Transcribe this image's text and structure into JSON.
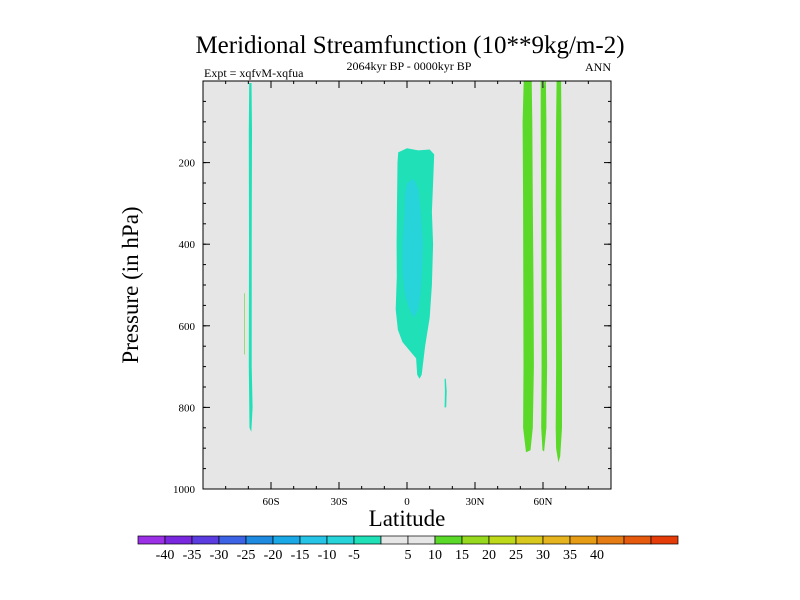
{
  "chart_data": {
    "type": "contour",
    "title": "Meridional Streamfunction (10**9kg/m-2)",
    "experiment": "Expt = xqfvM-xqfua",
    "period": "2064kyr BP - 0000kyr BP",
    "season": "ANN",
    "xlabel": "Latitude",
    "ylabel": "Pressure (in hPa)",
    "xlim": [
      -90,
      90
    ],
    "ylim": [
      1000,
      0
    ],
    "x_ticks": [
      {
        "value": -60,
        "label": "60S"
      },
      {
        "value": -30,
        "label": "30S"
      },
      {
        "value": 0,
        "label": "0"
      },
      {
        "value": 30,
        "label": "30N"
      },
      {
        "value": 60,
        "label": "60N"
      }
    ],
    "x_minor_step": 10,
    "y_ticks": [
      {
        "value": 200,
        "label": "200"
      },
      {
        "value": 400,
        "label": "400"
      },
      {
        "value": 600,
        "label": "600"
      },
      {
        "value": 800,
        "label": "800"
      },
      {
        "value": 1000,
        "label": "1000"
      }
    ],
    "y_minor_step": 50,
    "background_color": "#e6e6e6",
    "contour_regions": [
      {
        "name": "sh-thin-column",
        "level": "-10 to -5",
        "color": "#20e0b8",
        "points": [
          [
            -69.6,
            5
          ],
          [
            -68.6,
            5
          ],
          [
            -68.4,
            120
          ],
          [
            -68.5,
            400
          ],
          [
            -68.5,
            700
          ],
          [
            -68.1,
            800
          ],
          [
            -68.7,
            860
          ],
          [
            -69.5,
            850
          ],
          [
            -69.8,
            700
          ],
          [
            -69.7,
            400
          ],
          [
            -69.8,
            120
          ]
        ]
      },
      {
        "name": "sh-tiny-positive",
        "level": "5 to 10",
        "color": "#5ad928",
        "points": [
          [
            -71.8,
            520
          ],
          [
            -71.5,
            520
          ],
          [
            -71.5,
            670
          ],
          [
            -71.8,
            670
          ]
        ]
      },
      {
        "name": "tropical-cell",
        "level": "-10 to -5",
        "color": "#20e0b8",
        "points": [
          [
            -3.9,
            175
          ],
          [
            0,
            165
          ],
          [
            5,
            170
          ],
          [
            10,
            168
          ],
          [
            12,
            180
          ],
          [
            11.5,
            250
          ],
          [
            11,
            320
          ],
          [
            11.5,
            400
          ],
          [
            11,
            500
          ],
          [
            10,
            580
          ],
          [
            8,
            650
          ],
          [
            6.5,
            720
          ],
          [
            5.5,
            730
          ],
          [
            4.5,
            720
          ],
          [
            4,
            680
          ],
          [
            -2,
            640
          ],
          [
            -4,
            610
          ],
          [
            -5,
            560
          ],
          [
            -4.5,
            480
          ],
          [
            -4.6,
            400
          ],
          [
            -4.4,
            300
          ],
          [
            -4.2,
            200
          ]
        ]
      },
      {
        "name": "tropical-core",
        "level": "-15 to -10",
        "color": "#26d4d9",
        "points": [
          [
            0,
            250
          ],
          [
            3,
            240
          ],
          [
            5,
            265
          ],
          [
            6,
            320
          ],
          [
            7,
            400
          ],
          [
            6.5,
            480
          ],
          [
            6,
            520
          ],
          [
            5,
            560
          ],
          [
            3,
            580
          ],
          [
            1,
            560
          ],
          [
            -1,
            520
          ],
          [
            -2,
            470
          ],
          [
            -2,
            400
          ],
          [
            -1,
            320
          ],
          [
            -1,
            280
          ]
        ]
      },
      {
        "name": "tropical-small-patch",
        "level": "-10 to -5",
        "color": "#20e0b8",
        "points": [
          [
            16.6,
            730
          ],
          [
            17.1,
            730
          ],
          [
            17.5,
            760
          ],
          [
            17.3,
            800
          ],
          [
            16.6,
            800
          ],
          [
            16.7,
            760
          ]
        ]
      },
      {
        "name": "nh-column-1",
        "level": "5 to 10",
        "color": "#5ad928",
        "points": [
          [
            51.5,
            0
          ],
          [
            55,
            0
          ],
          [
            55.3,
            100
          ],
          [
            55.5,
            300
          ],
          [
            55.8,
            500
          ],
          [
            56,
            700
          ],
          [
            55.5,
            850
          ],
          [
            54.5,
            905
          ],
          [
            52.5,
            910
          ],
          [
            51.2,
            850
          ],
          [
            51.4,
            700
          ],
          [
            51.3,
            500
          ],
          [
            51.2,
            300
          ],
          [
            51,
            100
          ]
        ]
      },
      {
        "name": "nh-column-2",
        "level": "5 to 10",
        "color": "#5ad928",
        "points": [
          [
            59,
            0
          ],
          [
            61.3,
            0
          ],
          [
            61.5,
            100
          ],
          [
            61.5,
            300
          ],
          [
            61.6,
            500
          ],
          [
            61.8,
            700
          ],
          [
            61.5,
            850
          ],
          [
            60.5,
            908
          ],
          [
            59.8,
            905
          ],
          [
            59.2,
            850
          ],
          [
            59.4,
            700
          ],
          [
            59.3,
            500
          ],
          [
            59.2,
            300
          ],
          [
            59,
            100
          ]
        ]
      },
      {
        "name": "nh-column-3",
        "level": "5 to 10",
        "color": "#5ad928",
        "points": [
          [
            66,
            0
          ],
          [
            68,
            0
          ],
          [
            68.1,
            100
          ],
          [
            68.1,
            300
          ],
          [
            68.2,
            500
          ],
          [
            68.4,
            700
          ],
          [
            68.4,
            850
          ],
          [
            67.6,
            920
          ],
          [
            66.8,
            935
          ],
          [
            65.8,
            900
          ],
          [
            65.6,
            850
          ],
          [
            65.8,
            700
          ],
          [
            65.7,
            500
          ],
          [
            65.6,
            300
          ],
          [
            65.8,
            100
          ]
        ]
      },
      {
        "name": "nh-gap-notch",
        "level": "0 to 5",
        "color": "#e6e6e6",
        "points": [
          [
            60,
            0
          ],
          [
            60.6,
            0
          ],
          [
            60.3,
            20
          ]
        ]
      }
    ],
    "colorbar": {
      "colors": [
        "#9b30e6",
        "#7a28e0",
        "#5a3ce0",
        "#3c63e6",
        "#1e8ae0",
        "#1aa8e6",
        "#26c4e6",
        "#26d4d9",
        "#20e0b8",
        "#e6e6e6",
        "#e6e6e6",
        "#5ad928",
        "#96d91e",
        "#bdd91a",
        "#d9c81e",
        "#e6b41e",
        "#e69c14",
        "#e67c14",
        "#e65a0e",
        "#e63c0a"
      ],
      "labels": [
        "-40",
        "-35",
        "-30",
        "-25",
        "-20",
        "-15",
        "-10",
        "-5",
        "5",
        "10",
        "15",
        "20",
        "25",
        "30",
        "35",
        "40"
      ],
      "label_boundaries": [
        1,
        2,
        3,
        4,
        5,
        6,
        7,
        8,
        10,
        11,
        12,
        13,
        14,
        15,
        16,
        17
      ]
    }
  }
}
